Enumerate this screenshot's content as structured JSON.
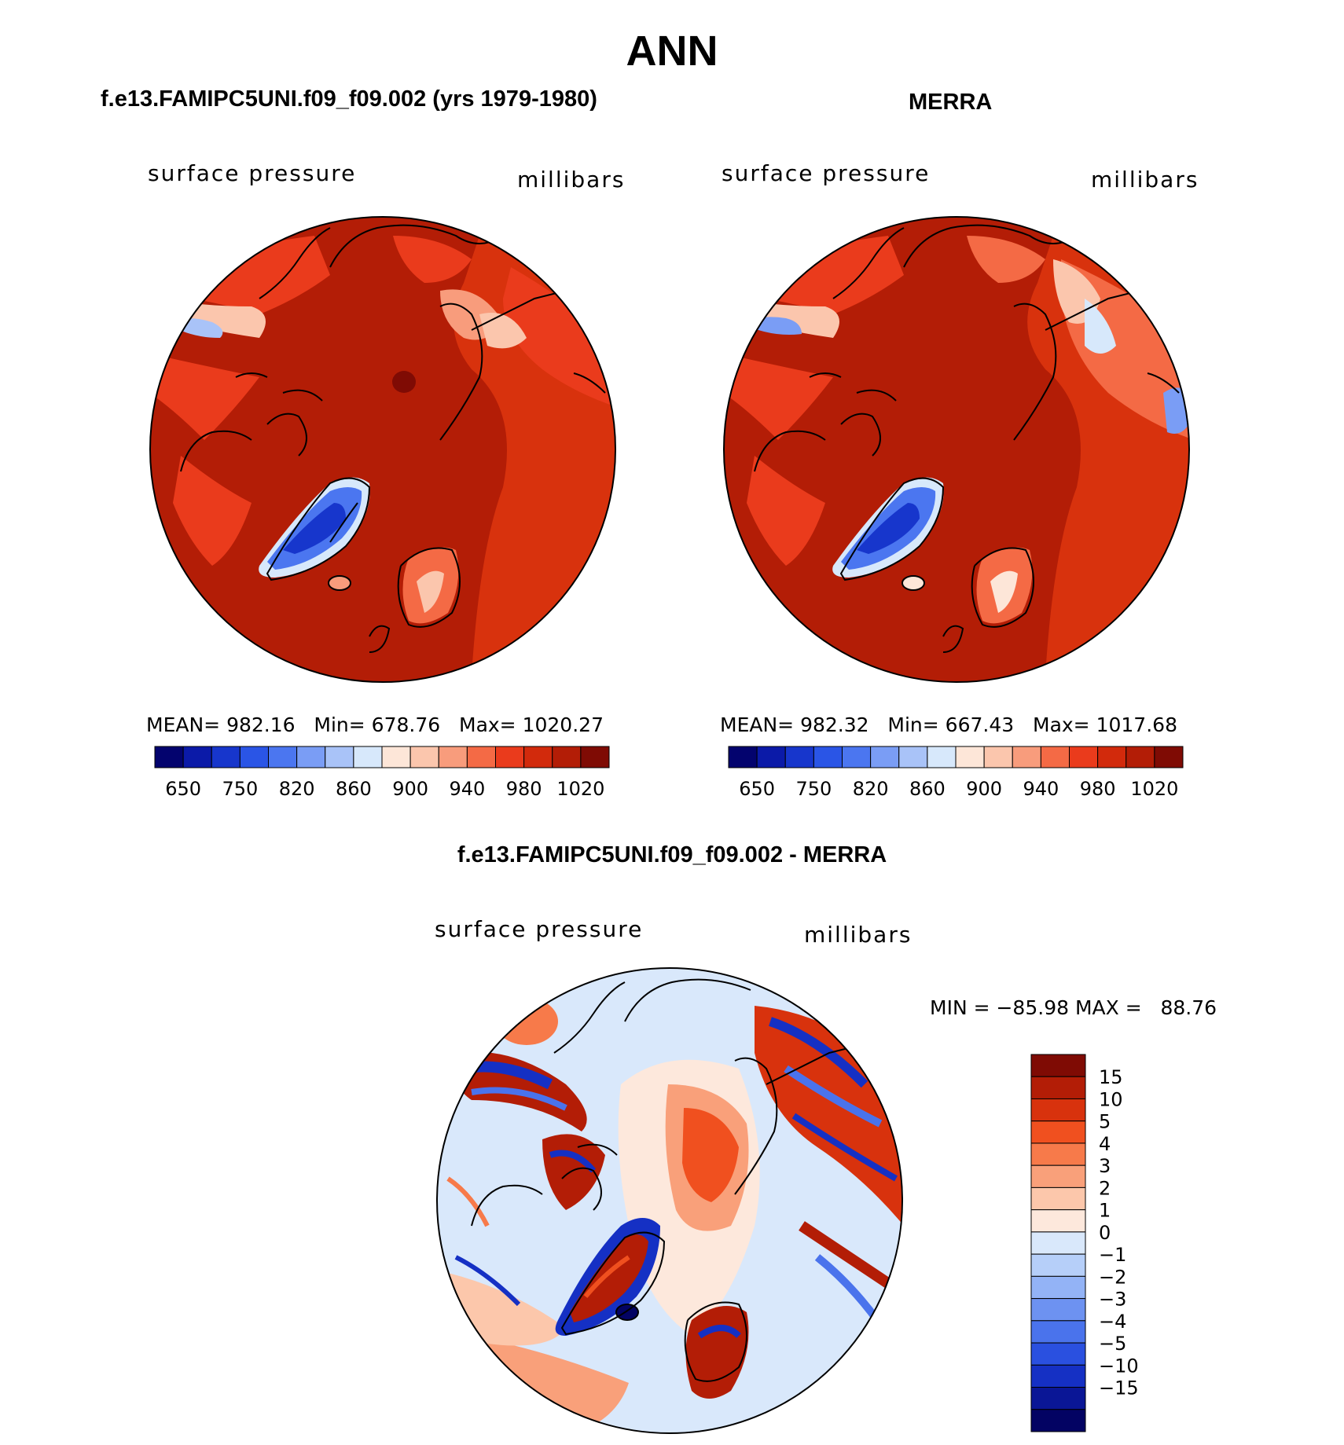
{
  "figure_title": "ANN",
  "panels": [
    {
      "title": "f.e13.FAMIPC5UNI.f09_f09.002 (yrs 1979-1980)",
      "variable": "surface pressure",
      "units": "millibars",
      "stats": {
        "mean_label": "MEAN=",
        "mean": "982.16",
        "min_label": "Min=",
        "min": "678.76",
        "max_label": "Max=",
        "max": "1020.27"
      }
    },
    {
      "title": "MERRA",
      "variable": "surface pressure",
      "units": "millibars",
      "stats": {
        "mean_label": "MEAN=",
        "mean": "982.32",
        "min_label": "Min=",
        "min": "667.43",
        "max_label": "Max=",
        "max": "1017.68"
      }
    },
    {
      "title": "f.e13.FAMIPC5UNI.f09_f09.002 - MERRA",
      "variable": "surface pressure",
      "units": "millibars",
      "stats_text": "MIN = −85.98 MAX =   88.76"
    }
  ],
  "chart_data": [
    {
      "type": "heatmap",
      "projection": "north polar stereographic",
      "colorbar": {
        "orientation": "horizontal",
        "colors": [
          "#03036e",
          "#0b1aa8",
          "#1736cc",
          "#2a55e6",
          "#4b76f0",
          "#7a9df5",
          "#a9c3f8",
          "#d7e8fb",
          "#fde6d8",
          "#fbc6ad",
          "#f89c7c",
          "#f46a45",
          "#ea3b1c",
          "#d22a0c",
          "#b31d06",
          "#7f0b04"
        ],
        "labels": [
          "650",
          "750",
          "820",
          "860",
          "900",
          "940",
          "980",
          "1020"
        ]
      }
    },
    {
      "type": "heatmap",
      "projection": "north polar stereographic",
      "colorbar": {
        "orientation": "horizontal",
        "colors": [
          "#03036e",
          "#0b1aa8",
          "#1736cc",
          "#2a55e6",
          "#4b76f0",
          "#7a9df5",
          "#a9c3f8",
          "#d7e8fb",
          "#fde6d8",
          "#fbc6ad",
          "#f89c7c",
          "#f46a45",
          "#ea3b1c",
          "#d22a0c",
          "#b31d06",
          "#7f0b04"
        ],
        "labels": [
          "650",
          "750",
          "820",
          "860",
          "900",
          "940",
          "980",
          "1020"
        ]
      }
    },
    {
      "type": "heatmap",
      "projection": "north polar stereographic",
      "colorbar": {
        "orientation": "vertical",
        "colors": [
          "#7f0b04",
          "#b31d06",
          "#d8320d",
          "#f0501f",
          "#f77a4a",
          "#f9a07a",
          "#fcc7ab",
          "#fde8dc",
          "#d9e8fb",
          "#b6cff9",
          "#93b3f6",
          "#6d92f1",
          "#4a73ec",
          "#2a50e0",
          "#1530c4",
          "#0a1696",
          "#030363"
        ],
        "labels": [
          "15",
          "10",
          "5",
          "4",
          "3",
          "2",
          "1",
          "0",
          "−1",
          "−2",
          "−3",
          "−4",
          "−5",
          "−10",
          "−15"
        ]
      }
    }
  ]
}
